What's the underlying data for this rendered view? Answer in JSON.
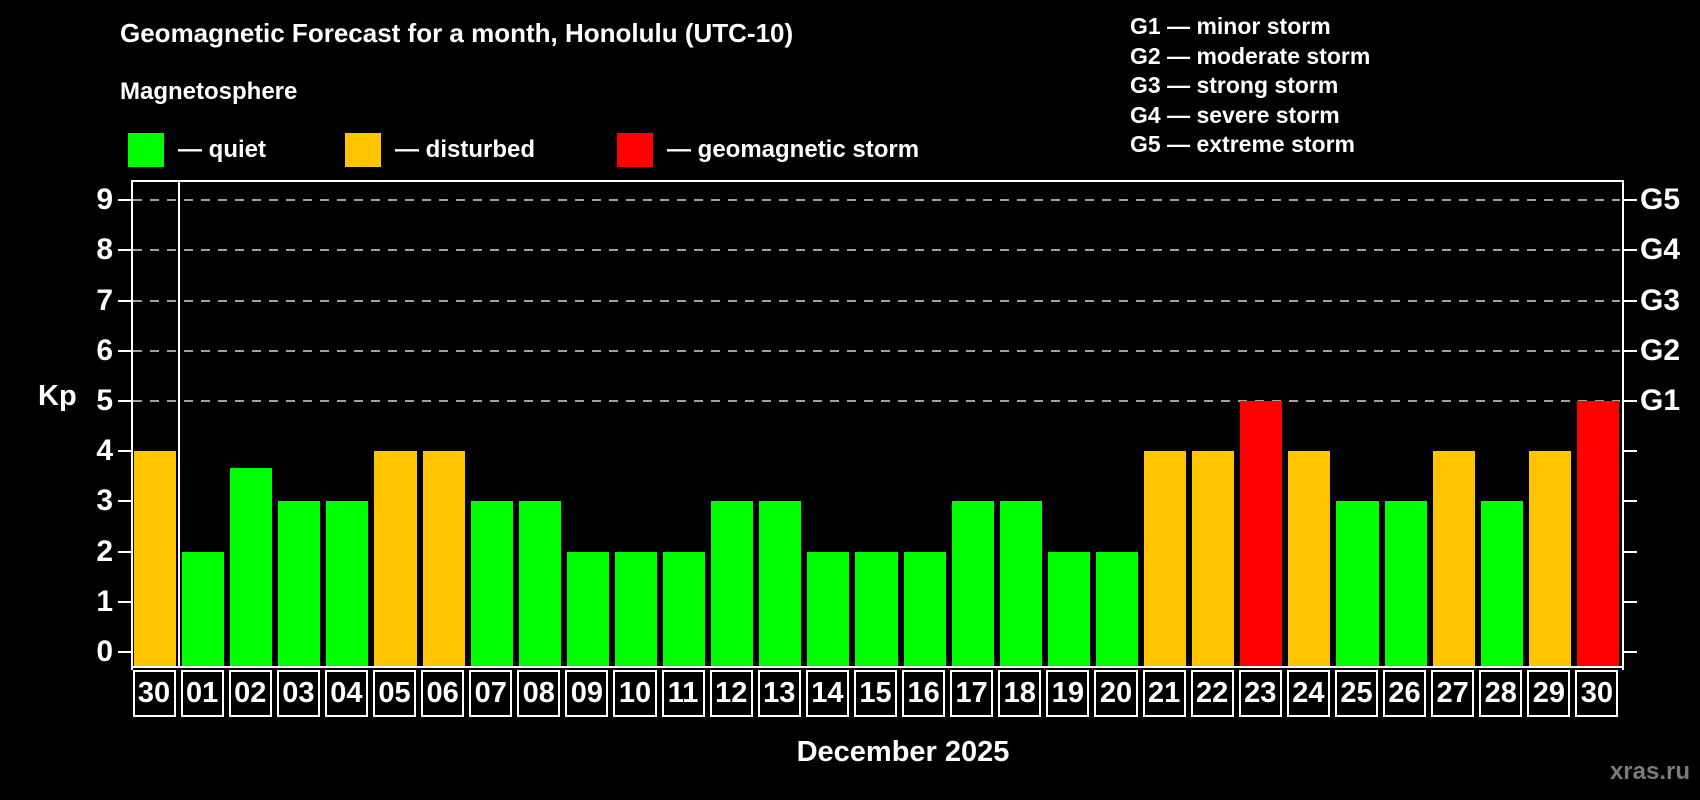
{
  "title": "Geomagnetic Forecast for a month, Honolulu (UTC-10)",
  "subtitle": "Magnetosphere",
  "kp_axis_label": "Kp",
  "x_axis_title": "December 2025",
  "watermark": "xras.ru",
  "legend": [
    {
      "key": "quiet",
      "label": "— quiet",
      "color": "#00ff00"
    },
    {
      "key": "disturbed",
      "label": "— disturbed",
      "color": "#ffc400"
    },
    {
      "key": "storm",
      "label": "— geomagnetic storm",
      "color": "#ff0000"
    }
  ],
  "g_legend": [
    "G1 — minor storm",
    "G2 — moderate storm",
    "G3 — strong storm",
    "G4 — severe storm",
    "G5 — extreme storm"
  ],
  "status_colors": {
    "quiet": "#00ff00",
    "disturbed": "#ffc400",
    "storm": "#ff0000"
  },
  "chart_data": {
    "type": "bar",
    "title": "Geomagnetic Forecast for a month, Honolulu (UTC-10)",
    "xlabel": "December 2025",
    "ylabel": "Kp",
    "ylim": [
      0,
      9
    ],
    "yticks": [
      0,
      1,
      2,
      3,
      4,
      5,
      6,
      7,
      8,
      9
    ],
    "gridline_levels": [
      5,
      6,
      7,
      8,
      9
    ],
    "grid": "dashed horizontal at storm levels only",
    "right_axis_labels": [
      {
        "level": 5,
        "label": "G1"
      },
      {
        "level": 6,
        "label": "G2"
      },
      {
        "level": 7,
        "label": "G3"
      },
      {
        "level": 8,
        "label": "G4"
      },
      {
        "level": 9,
        "label": "G5"
      }
    ],
    "categories": [
      "30",
      "01",
      "02",
      "03",
      "04",
      "05",
      "06",
      "07",
      "08",
      "09",
      "10",
      "11",
      "12",
      "13",
      "14",
      "15",
      "16",
      "17",
      "18",
      "19",
      "20",
      "21",
      "22",
      "23",
      "24",
      "25",
      "26",
      "27",
      "28",
      "29",
      "30"
    ],
    "values": [
      4,
      2,
      3.67,
      3,
      3,
      4,
      4,
      3,
      3,
      2,
      2,
      2,
      3,
      3,
      2,
      2,
      2,
      3,
      3,
      2,
      2,
      4,
      4,
      5,
      4,
      3,
      3,
      4,
      3,
      4,
      5
    ],
    "statuses": [
      "disturbed",
      "quiet",
      "quiet",
      "quiet",
      "quiet",
      "disturbed",
      "disturbed",
      "quiet",
      "quiet",
      "quiet",
      "quiet",
      "quiet",
      "quiet",
      "quiet",
      "quiet",
      "quiet",
      "quiet",
      "quiet",
      "quiet",
      "quiet",
      "quiet",
      "disturbed",
      "disturbed",
      "storm",
      "disturbed",
      "quiet",
      "quiet",
      "disturbed",
      "quiet",
      "disturbed",
      "storm"
    ],
    "divider_after_index": 0
  }
}
